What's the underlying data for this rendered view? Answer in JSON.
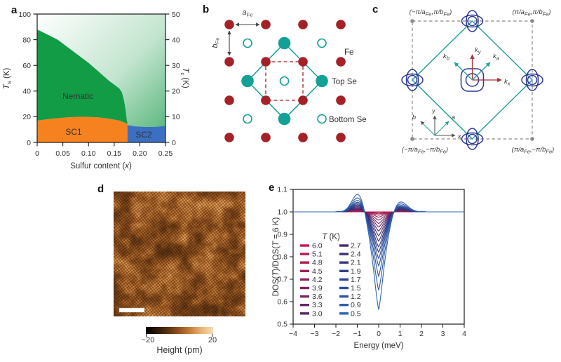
{
  "figure": {
    "panel_letters": {
      "a": "a",
      "b": "b",
      "c": "c",
      "d": "d",
      "e": "e"
    }
  },
  "panel_a": {
    "ylabel_left": {
      "sym": "T",
      "sub": "S",
      "unit": " (K)"
    },
    "ylabel_right": {
      "sym": "T",
      "sub": "c",
      "unit": " (K)"
    },
    "xlabel": {
      "pre": "Sulfur content (",
      "var": "x",
      "post": ")"
    },
    "left_ticks": [
      "0",
      "20",
      "40",
      "60",
      "80",
      "100"
    ],
    "right_ticks": [
      "0",
      "10",
      "20",
      "30",
      "40",
      "50"
    ],
    "x_ticks": [
      "0",
      "0.05",
      "0.10",
      "0.15",
      "0.20",
      "0.25"
    ],
    "labels": {
      "nematic": "Nematic",
      "sc1": "SC1",
      "sc2": "SC2"
    },
    "colors": {
      "nematic": "#119c45",
      "sc1": "#f5821f",
      "sc2": "#3b6fc3",
      "grad_start": "#ffffff",
      "grad_mid": "#c3e5cf",
      "grad_end": "#4fb274",
      "nematic_text": "#173a23",
      "sc_text": "#3f3f3f"
    }
  },
  "panel_b": {
    "a_label": {
      "sym": "a",
      "sub": "Fe"
    },
    "b_label": {
      "sym": "b",
      "sub": "Fe"
    },
    "legend": {
      "fe": "Fe",
      "top_se": "Top Se",
      "bottom_se": "Bottom Se"
    },
    "colors": {
      "fe": "#a32127",
      "se": "#13a095"
    }
  },
  "panel_c": {
    "corners": {
      "tl": {
        "p1": "(−π/a",
        "s1": "Fe",
        "p2": ",π/b",
        "s2": "Fe",
        "p3": ")"
      },
      "tr": {
        "p1": "(π/a",
        "s1": "Fe",
        "p2": ",π/b",
        "s2": "Fe",
        "p3": ")"
      },
      "bl": {
        "p1": "(−π/a",
        "s1": "Fe",
        "p2": ",−π/b",
        "s2": "Fe",
        "p3": ")"
      },
      "br": {
        "p1": "(π/a",
        "s1": "Fe",
        "p2": ",−π/b",
        "s2": "Fe",
        "p3": ")"
      }
    },
    "k_labels": {
      "kx": {
        "sym": "k",
        "sub": "x"
      },
      "ky": {
        "sym": "k",
        "sub": "y"
      },
      "ka": {
        "sym": "k",
        "sub": "a"
      },
      "kb": {
        "sym": "k",
        "sub": "b"
      }
    },
    "axes_inset": {
      "x": "x",
      "y": "y",
      "a": "a",
      "b": "b"
    },
    "colors": {
      "pocket": "#2c3792",
      "zone": "#2aa198",
      "frame": "#8a8a8a",
      "kxy": "#a83238"
    }
  },
  "panel_d": {
    "colorbar_ticks": [
      "−20",
      "20"
    ],
    "colorbar_label": "Height (pm)",
    "palette": [
      "#000000",
      "#2b1708",
      "#5c3212",
      "#96541f",
      "#c8823e",
      "#eab777",
      "#f7dcb2"
    ]
  },
  "panel_e": {
    "ylabel": {
      "p0": "DOS(",
      "p1": "T",
      "p2": ")/DOS(",
      "p3": "T",
      "p4": " = 6 K)"
    },
    "xlabel": "Energy (meV)",
    "y_ticks": [
      "0.5",
      "0.6",
      "0.7",
      "0.8",
      "0.9",
      "1.0",
      "1.1"
    ],
    "x_ticks": [
      "−4",
      "−3",
      "−2",
      "−1",
      "0",
      "1",
      "2",
      "3",
      "4"
    ],
    "legend_title": {
      "sym": "T",
      "unit": " (K)"
    }
  },
  "chart_data": [
    {
      "panel": "a",
      "type": "area",
      "title": "Phase diagram of FeSe(1-x)S(x)",
      "xlabel": "Sulfur content (x)",
      "ylabel_left": "T_S (K)",
      "ylabel_right": "T_c (K)",
      "xlim": [
        0,
        0.25
      ],
      "ylim_left": [
        0,
        100
      ],
      "ylim_right": [
        0,
        50
      ],
      "regions": [
        "Nematic",
        "SC1",
        "SC2"
      ],
      "nematic_boundary": {
        "x": [
          0,
          0.02,
          0.04,
          0.06,
          0.08,
          0.1,
          0.12,
          0.14,
          0.15,
          0.16,
          0.165,
          0.169,
          0.172,
          0.174,
          0.176
        ],
        "T_S": [
          88,
          84,
          80,
          74,
          68,
          62,
          55,
          48,
          45,
          42,
          39,
          33,
          26,
          19,
          14.5
        ]
      },
      "sc1_top": {
        "x": [
          0,
          0.03,
          0.06,
          0.09,
          0.12,
          0.14,
          0.16,
          0.17,
          0.176
        ],
        "T_S": [
          17,
          18.5,
          19.5,
          20,
          19.5,
          18.5,
          17,
          15.5,
          14.5
        ]
      },
      "sc2_top": {
        "x": [
          0.176,
          0.19,
          0.21,
          0.23,
          0.25
        ],
        "T_S": [
          13.5,
          12.5,
          12,
          12,
          12.8
        ]
      },
      "sc1_sc2_boundary_x": 0.176
    },
    {
      "panel": "e",
      "type": "line",
      "xlabel": "Energy (meV)",
      "ylabel": "DOS(T)/DOS(T = 6 K)",
      "xlim": [
        -4,
        4
      ],
      "ylim": [
        0.5,
        1.1
      ],
      "legend_title": "T (K)",
      "legend_position": "center-left",
      "series": [
        {
          "T": "6.0",
          "color": "#c5164a",
          "min_dos": 1.0
        },
        {
          "T": "5.1",
          "color": "#b91a4e",
          "min_dos": 0.996
        },
        {
          "T": "4.8",
          "color": "#ac1d52",
          "min_dos": 0.991
        },
        {
          "T": "4.5",
          "color": "#9f2056",
          "min_dos": 0.985
        },
        {
          "T": "4.2",
          "color": "#91225a",
          "min_dos": 0.976
        },
        {
          "T": "3.9",
          "color": "#83235e",
          "min_dos": 0.963
        },
        {
          "T": "3.6",
          "color": "#742462",
          "min_dos": 0.948
        },
        {
          "T": "3.3",
          "color": "#652565",
          "min_dos": 0.932
        },
        {
          "T": "3.0",
          "color": "#562569",
          "min_dos": 0.914
        },
        {
          "T": "2.7",
          "color": "#47266c",
          "min_dos": 0.893
        },
        {
          "T": "2.4",
          "color": "#3d2f75",
          "min_dos": 0.869
        },
        {
          "T": "2.1",
          "color": "#35397f",
          "min_dos": 0.843
        },
        {
          "T": "1.9",
          "color": "#304089",
          "min_dos": 0.819
        },
        {
          "T": "1.7",
          "color": "#2c4791",
          "min_dos": 0.791
        },
        {
          "T": "1.5",
          "color": "#2a4e99",
          "min_dos": 0.758
        },
        {
          "T": "1.2",
          "color": "#2b55a2",
          "min_dos": 0.712
        },
        {
          "T": "0.9",
          "color": "#2e5cab",
          "min_dos": 0.649
        },
        {
          "T": "0.5",
          "color": "#3263b4",
          "min_dos": 0.562
        }
      ]
    }
  ]
}
